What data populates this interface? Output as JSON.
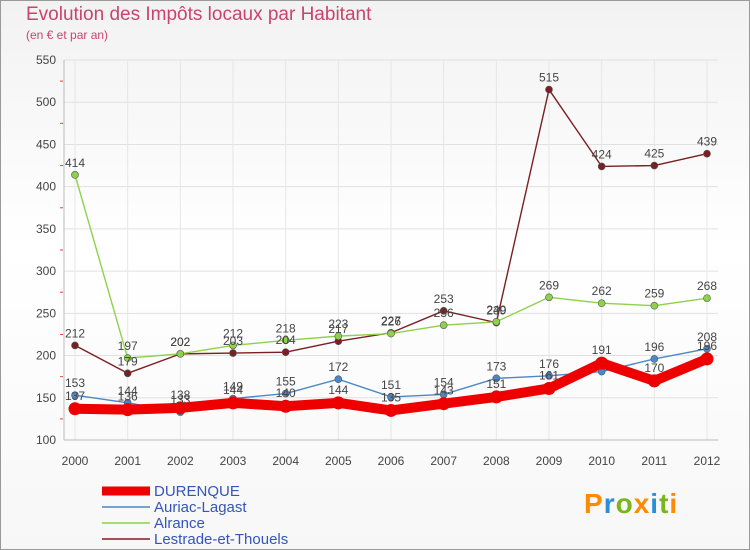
{
  "header": {
    "title": "Evolution des Impôts locaux par Habitant",
    "subtitle": "(en € et par an)"
  },
  "logo": {
    "text": "Proxiti",
    "colors": [
      "#ff8a00",
      "#2b8fd6",
      "#7ab51d",
      "#ff8a00",
      "#2b8fd6",
      "#7ab51d",
      "#ff8a00"
    ]
  },
  "chart_data": {
    "type": "line",
    "title": "Evolution des Impôts locaux par Habitant",
    "subtitle": "(en € et par an)",
    "xlabel": "",
    "ylabel": "",
    "x": [
      "2000",
      "2001",
      "2002",
      "2003",
      "2004",
      "2005",
      "2006",
      "2007",
      "2008",
      "2009",
      "2010",
      "2011",
      "2012"
    ],
    "ylim": [
      100,
      550
    ],
    "yticks": [
      100,
      150,
      200,
      250,
      300,
      350,
      400,
      450,
      500,
      550
    ],
    "grid": true,
    "legend_position": "bottom-left",
    "series": [
      {
        "name": "DURENQUE",
        "color": "#ee0000",
        "values": [
          137,
          136,
          138,
          144,
          140,
          144,
          135,
          143,
          151,
          161,
          191,
          170,
          196
        ],
        "labels": [
          "137",
          "136",
          "138",
          "144",
          "140",
          "144",
          "135",
          "143",
          "151",
          "161",
          "191",
          "170",
          "196"
        ]
      },
      {
        "name": "Auriac-Lagast",
        "color": "#4b88c6",
        "values": [
          153,
          144,
          133,
          149,
          155,
          172,
          151,
          154,
          173,
          176,
          181,
          196,
          208
        ],
        "labels": [
          "153",
          "144",
          "133",
          "149",
          "155",
          "172",
          "151",
          "154",
          "173",
          "176",
          "",
          "196",
          "208"
        ]
      },
      {
        "name": "Alrance",
        "color": "#8ed24b",
        "values": [
          414,
          197,
          202,
          212,
          218,
          223,
          226,
          236,
          240,
          269,
          262,
          259,
          268
        ],
        "labels": [
          "414",
          "197",
          "202",
          "212",
          "218",
          "223",
          "226",
          "236",
          "240",
          "269",
          "262",
          "259",
          "268"
        ]
      },
      {
        "name": "Lestrade-et-Thouels",
        "color": "#7a1f24",
        "values": [
          212,
          179,
          202,
          203,
          204,
          217,
          227,
          253,
          239,
          515,
          424,
          425,
          439
        ],
        "labels": [
          "212",
          "179",
          "202",
          "203",
          "204",
          "217",
          "227",
          "253",
          "239",
          "515",
          "424",
          "425",
          "439"
        ]
      }
    ]
  }
}
